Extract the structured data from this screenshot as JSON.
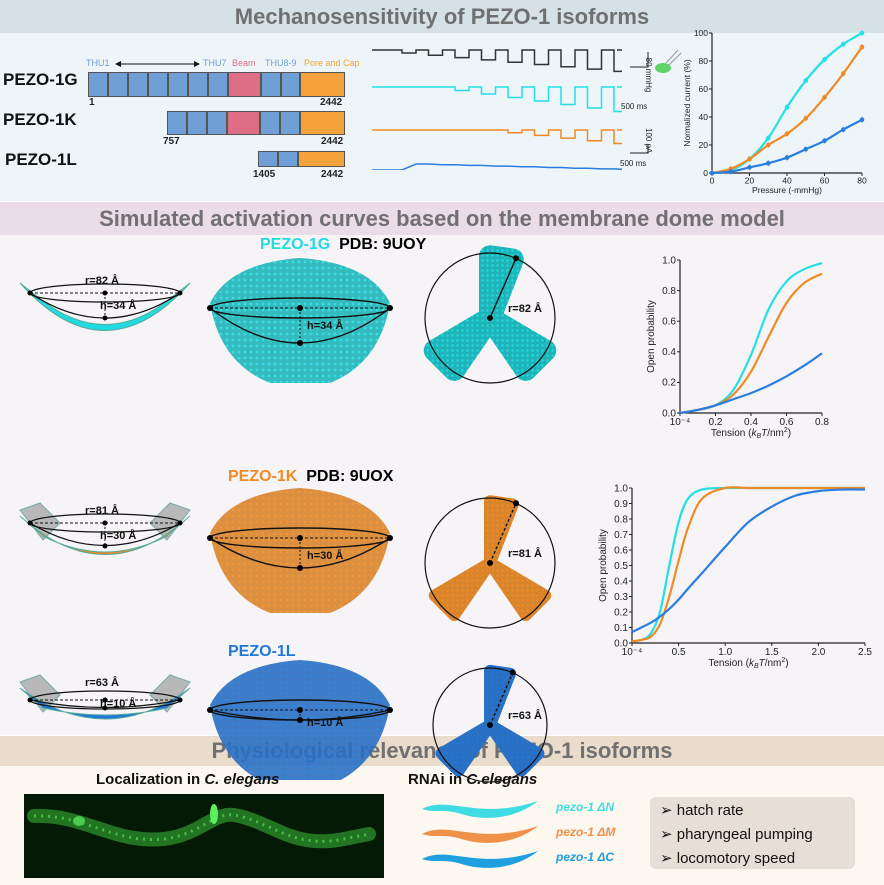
{
  "sections": {
    "top_title": "Mechanosensitivity of PEZO-1 isoforms",
    "middle_title": "Simulated activation curves based on the membrane dome model",
    "bottom_title": "Physiological relevance of PEZO-1 isoforms"
  },
  "colors": {
    "pezo_1g": "#22e0e6",
    "pezo_1k": "#f08a24",
    "pezo_1l": "#2a7de0",
    "thu": "#6f9fd4",
    "beam": "#de6e85",
    "pore": "#f4a33a"
  },
  "domains": {
    "thu1": "THU1",
    "thu7": "THU7",
    "beam": "Beam",
    "thu89": "THU8-9",
    "pore": "Pore and Cap",
    "isoforms": [
      {
        "name": "PEZO-1G",
        "start": "1",
        "end": "2442"
      },
      {
        "name": "PEZO-1K",
        "start": "757",
        "end": "2442"
      },
      {
        "name": "PEZO-1L",
        "start": "1405",
        "end": "2442"
      }
    ]
  },
  "traces": {
    "pressure_scale": "-80 mmHg",
    "time_scale_1": "500 ms",
    "current_scale": "100 pA",
    "time_scale_2": "500 ms"
  },
  "chart_data": [
    {
      "type": "line",
      "xlabel": "Pressure (-mmHg)",
      "ylabel": "Normalized current (%)",
      "xlim": [
        0,
        80
      ],
      "ylim": [
        0,
        100
      ],
      "xticks": [
        "0",
        "20",
        "40",
        "60",
        "80"
      ],
      "yticks": [
        "0",
        "20",
        "40",
        "60",
        "80",
        "100"
      ],
      "x": [
        0,
        10,
        20,
        30,
        40,
        50,
        60,
        70,
        80
      ],
      "series": [
        {
          "color": "#22e0e6",
          "values": [
            0,
            2,
            10,
            25,
            47,
            66,
            81,
            92,
            100
          ]
        },
        {
          "color": "#f08a24",
          "values": [
            0,
            3,
            10,
            20,
            28,
            39,
            54,
            71,
            90
          ]
        },
        {
          "color": "#2a7de0",
          "values": [
            0,
            1,
            4,
            7,
            11,
            17,
            23,
            31,
            38
          ]
        }
      ]
    },
    {
      "type": "line",
      "xlabel": "Tension (kBT/nm²)",
      "ylabel": "Open probability",
      "xlim": [
        0,
        0.8
      ],
      "ylim": [
        0,
        1
      ],
      "xticks": [
        "10⁻⁴",
        "0.2",
        "0.4",
        "0.6",
        "0.8"
      ],
      "yticks": [
        "0.0",
        "0.2",
        "0.4",
        "0.6",
        "0.8",
        "1.0"
      ],
      "x": [
        0,
        0.1,
        0.2,
        0.3,
        0.4,
        0.5,
        0.6,
        0.7,
        0.8
      ],
      "series": [
        {
          "color": "#22e0e6",
          "values": [
            0,
            0.02,
            0.05,
            0.15,
            0.38,
            0.68,
            0.86,
            0.94,
            0.98
          ]
        },
        {
          "color": "#f08a24",
          "values": [
            0,
            0.02,
            0.05,
            0.12,
            0.27,
            0.5,
            0.72,
            0.85,
            0.91
          ]
        },
        {
          "color": "#2a7de0",
          "values": [
            0,
            0.02,
            0.05,
            0.09,
            0.13,
            0.18,
            0.24,
            0.31,
            0.39
          ]
        }
      ]
    },
    {
      "type": "line",
      "xlabel": "Tension (kBT/nm²)",
      "ylabel": "Open probability",
      "xlim": [
        0,
        2.5
      ],
      "ylim": [
        0,
        1
      ],
      "xticks": [
        "10⁻⁴",
        "0.5",
        "1.0",
        "1.5",
        "2.0",
        "2.5"
      ],
      "yticks": [
        "0.0",
        "0.1",
        "0.2",
        "0.3",
        "0.4",
        "0.5",
        "0.6",
        "0.7",
        "0.8",
        "0.9",
        "1.0"
      ],
      "x": [
        0,
        0.1,
        0.2,
        0.3,
        0.4,
        0.5,
        0.6,
        0.75,
        1.0,
        1.25,
        1.5,
        1.75,
        2.0,
        2.25,
        2.5
      ],
      "series": [
        {
          "color": "#22e0e6",
          "values": [
            0.01,
            0.02,
            0.06,
            0.2,
            0.5,
            0.78,
            0.93,
            0.99,
            1,
            1,
            1,
            1,
            1,
            1,
            1
          ]
        },
        {
          "color": "#f08a24",
          "values": [
            0.01,
            0.02,
            0.04,
            0.12,
            0.3,
            0.53,
            0.74,
            0.93,
            1,
            1,
            1,
            1,
            1,
            1,
            1
          ]
        },
        {
          "color": "#2a7de0",
          "values": [
            0.07,
            0.1,
            0.13,
            0.17,
            0.22,
            0.28,
            0.35,
            0.45,
            0.62,
            0.78,
            0.88,
            0.95,
            0.98,
            0.99,
            0.99
          ]
        }
      ]
    }
  ],
  "models": [
    {
      "name": "PEZO-1G",
      "pdb": "PDB: 9UOY",
      "r": "r=82 Å",
      "h": "h=34 Å",
      "color": "#22dbe0",
      "structure_color": "#1fb4b8"
    },
    {
      "name": "PEZO-1K",
      "pdb": "PDB: 9UOX",
      "r": "r=81 Å",
      "h": "h=30 Å",
      "color": "#f08a24",
      "structure_color": "#d8842c"
    },
    {
      "name": "PEZO-1L",
      "pdb": "",
      "r": "r=63 Å",
      "h": "h=10 Å",
      "color": "#1f78d6",
      "structure_color": "#2a6fc2"
    }
  ],
  "physiology": {
    "localization_title_prefix": "Localization in ",
    "localization_title_species": "C. elegans",
    "rnai_title_prefix": "RNAi in ",
    "rnai_title_species": "C.elegans",
    "rnai": [
      {
        "label": "pezo-1 ΔN",
        "color": "#3fdde3"
      },
      {
        "label": "pezo-1 ΔM",
        "color": "#f0914a"
      },
      {
        "label": "pezo-1 ΔC",
        "color": "#1f9ee0"
      }
    ],
    "phenotypes": [
      "hatch rate",
      "pharyngeal pumping",
      "locomotory speed"
    ]
  }
}
